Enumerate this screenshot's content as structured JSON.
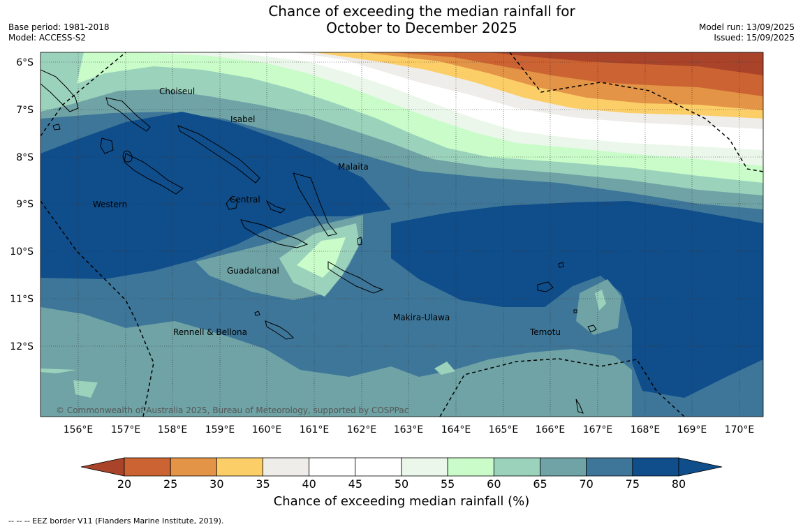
{
  "title": {
    "line1": "Chance of exceeding the median rainfall for",
    "line2": "October to December 2025"
  },
  "meta_left": {
    "base_period": "Base period: 1981-2018",
    "model": "Model: ACCESS-S2"
  },
  "meta_right": {
    "model_run": "Model run: 13/09/2025",
    "issued": "Issued: 15/09/2025"
  },
  "map": {
    "lat_labels": [
      "6°S",
      "7°S",
      "8°S",
      "9°S",
      "10°S",
      "11°S",
      "12°S"
    ],
    "lon_labels": [
      "156°E",
      "157°E",
      "158°E",
      "159°E",
      "160°E",
      "161°E",
      "162°E",
      "163°E",
      "164°E",
      "165°E",
      "166°E",
      "167°E",
      "168°E",
      "169°E",
      "170°E"
    ],
    "regions": [
      "Choiseul",
      "Isabel",
      "Malaita",
      "Western",
      "Central",
      "Guadalcanal",
      "Makira-Ulawa",
      "Rennell & Bellona",
      "Temotu"
    ],
    "copyright": "© Commonwealth of Australia 2025, Bureau of Meteorology, supported by COSPPac"
  },
  "colorbar": {
    "ticks": [
      "20",
      "25",
      "30",
      "35",
      "40",
      "45",
      "50",
      "55",
      "60",
      "65",
      "70",
      "75",
      "80"
    ],
    "colors": [
      "#a9432a",
      "#cc6333",
      "#e39446",
      "#fcce68",
      "#efedea",
      "#ffffff",
      "#ffffff",
      "#eaf7ea",
      "#c9fcc9",
      "#9ad2bc",
      "#6fa3a5",
      "#3e7699",
      "#0f4d8b"
    ],
    "title": "Chance of exceeding median rainfall (%)"
  },
  "footnote": "--  --  -- EEZ border V11 (Flanders Marine Institute, 2019)."
}
